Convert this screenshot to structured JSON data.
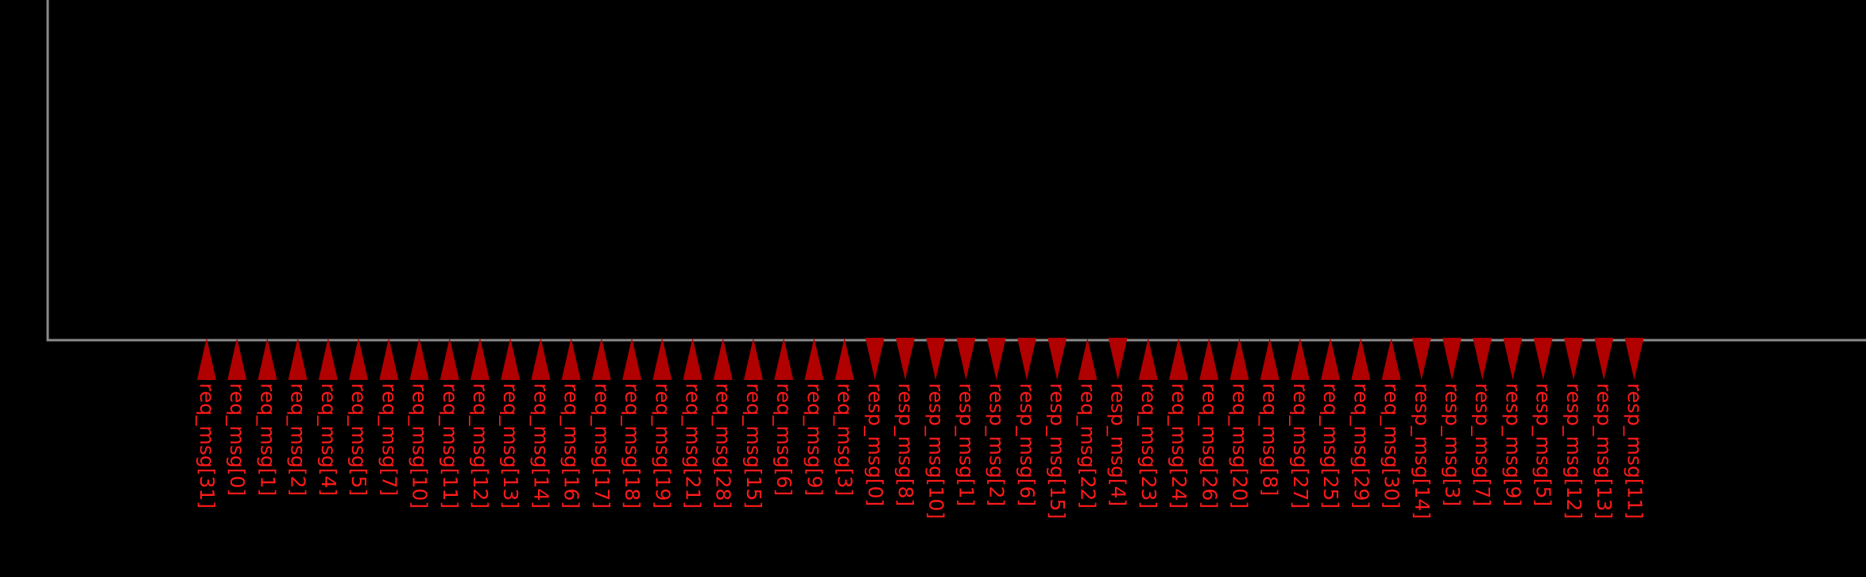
{
  "colors": {
    "background": "#000000",
    "boundary": "#8a8a8a",
    "pin": "#b00000",
    "label": "#ff1a1a"
  },
  "pins": [
    {
      "label": "req_msg[31]",
      "direction": "up"
    },
    {
      "label": "req_msg[0]",
      "direction": "up"
    },
    {
      "label": "req_msg[1]",
      "direction": "up"
    },
    {
      "label": "req_msg[2]",
      "direction": "up"
    },
    {
      "label": "req_msg[4]",
      "direction": "up"
    },
    {
      "label": "req_msg[5]",
      "direction": "up"
    },
    {
      "label": "req_msg[7]",
      "direction": "up"
    },
    {
      "label": "req_msg[10]",
      "direction": "up"
    },
    {
      "label": "req_msg[11]",
      "direction": "up"
    },
    {
      "label": "req_msg[12]",
      "direction": "up"
    },
    {
      "label": "req_msg[13]",
      "direction": "up"
    },
    {
      "label": "req_msg[14]",
      "direction": "up"
    },
    {
      "label": "req_msg[16]",
      "direction": "up"
    },
    {
      "label": "req_msg[17]",
      "direction": "up"
    },
    {
      "label": "req_msg[18]",
      "direction": "up"
    },
    {
      "label": "req_msg[19]",
      "direction": "up"
    },
    {
      "label": "req_msg[21]",
      "direction": "up"
    },
    {
      "label": "req_msg[28]",
      "direction": "up"
    },
    {
      "label": "req_msg[15]",
      "direction": "up"
    },
    {
      "label": "req_msg[6]",
      "direction": "up"
    },
    {
      "label": "req_msg[9]",
      "direction": "up"
    },
    {
      "label": "req_msg[3]",
      "direction": "up"
    },
    {
      "label": "resp_msg[0]",
      "direction": "down"
    },
    {
      "label": "resp_msg[8]",
      "direction": "down"
    },
    {
      "label": "resp_msg[10]",
      "direction": "down"
    },
    {
      "label": "resp_msg[1]",
      "direction": "down"
    },
    {
      "label": "resp_msg[2]",
      "direction": "down"
    },
    {
      "label": "resp_msg[6]",
      "direction": "down"
    },
    {
      "label": "resp_msg[15]",
      "direction": "down"
    },
    {
      "label": "req_msg[22]",
      "direction": "up"
    },
    {
      "label": "resp_msg[4]",
      "direction": "down"
    },
    {
      "label": "req_msg[23]",
      "direction": "up"
    },
    {
      "label": "req_msg[24]",
      "direction": "up"
    },
    {
      "label": "req_msg[26]",
      "direction": "up"
    },
    {
      "label": "req_msg[20]",
      "direction": "up"
    },
    {
      "label": "req_msg[8]",
      "direction": "up"
    },
    {
      "label": "req_msg[27]",
      "direction": "up"
    },
    {
      "label": "req_msg[25]",
      "direction": "up"
    },
    {
      "label": "req_msg[29]",
      "direction": "up"
    },
    {
      "label": "req_msg[30]",
      "direction": "up"
    },
    {
      "label": "resp_msg[14]",
      "direction": "down"
    },
    {
      "label": "resp_msg[3]",
      "direction": "down"
    },
    {
      "label": "resp_msg[7]",
      "direction": "down"
    },
    {
      "label": "resp_msg[9]",
      "direction": "down"
    },
    {
      "label": "resp_msg[5]",
      "direction": "down"
    },
    {
      "label": "resp_msg[12]",
      "direction": "down"
    },
    {
      "label": "resp_msg[13]",
      "direction": "down"
    },
    {
      "label": "resp_msg[11]",
      "direction": "down"
    }
  ]
}
